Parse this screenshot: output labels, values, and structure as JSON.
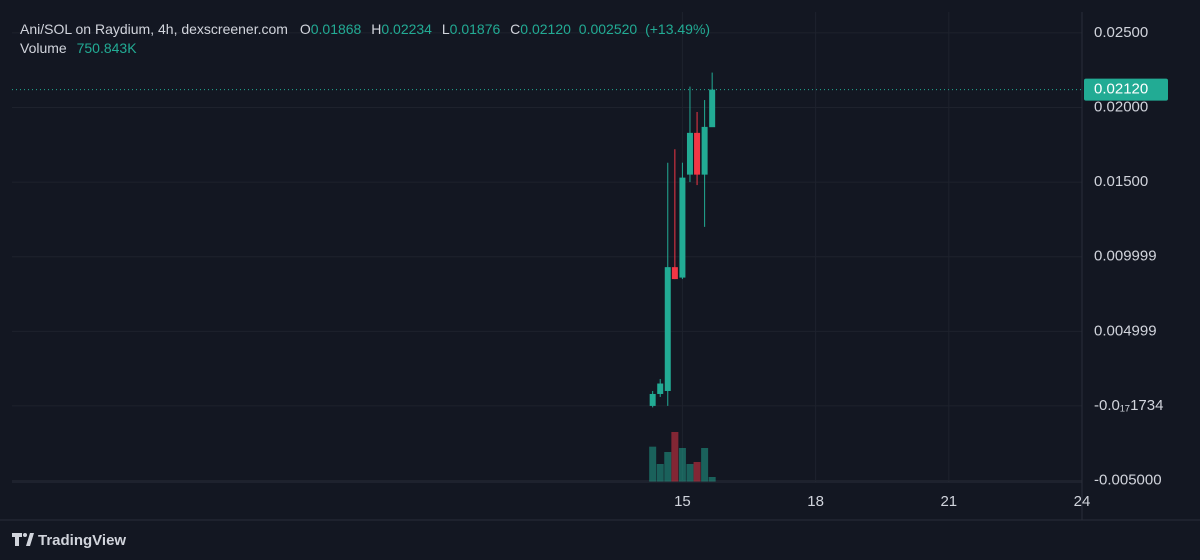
{
  "chart_data": {
    "type": "candlestick",
    "title": "Ani/SOL on Raydium, 4h, dexscreener.com",
    "legend": [
      {
        "key": "O",
        "value": "0.01868"
      },
      {
        "key": "H",
        "value": "0.02234"
      },
      {
        "key": "L",
        "value": "0.01876"
      },
      {
        "key": "C",
        "value": "0.02120"
      }
    ],
    "change": "0.002520",
    "change_pct": "(+13.49%)",
    "volume_title": "Volume",
    "volume_label": "750.843K",
    "last_price_label": "0.02120",
    "x": [
      14.33,
      14.5,
      14.67,
      14.83,
      15.0,
      15.17,
      15.33,
      15.5,
      15.67
    ],
    "open": [
      0.0,
      0.0008,
      0.001,
      0.0093,
      0.0086,
      0.0155,
      0.0183,
      0.0155,
      0.01868
    ],
    "high": [
      0.001,
      0.0018,
      0.0163,
      0.0172,
      0.0163,
      0.0214,
      0.0197,
      0.0205,
      0.02234
    ],
    "low": [
      -0.0001,
      0.0006,
      0.0,
      0.0085,
      0.0085,
      0.015,
      0.0148,
      0.012,
      0.01876
    ],
    "close": [
      0.0008,
      0.0015,
      0.0093,
      0.0085,
      0.0153,
      0.0183,
      0.0155,
      0.0187,
      0.0212
    ],
    "volume": [
      5300000,
      2700000,
      4500000,
      7500000,
      5100000,
      2700000,
      3000000,
      5100000,
      750843
    ],
    "up_color": "#22ab94",
    "down_color": "#f23645",
    "xlim": [
      -0.1,
      24.0
    ],
    "xticks": [
      15,
      18,
      21,
      24
    ],
    "ylim": [
      -0.0051,
      0.0264
    ],
    "yticks": [
      {
        "value": -0.005,
        "label": "-0.005000"
      },
      {
        "value": -1.734e-18,
        "label": "-0.0₁₇1734"
      },
      0.004999,
      0.009999,
      {
        "value": 0.015,
        "label": "0.01500"
      },
      {
        "value": 0.02,
        "label": "0.02000"
      },
      {
        "value": 0.025,
        "label": "0.02500"
      }
    ],
    "grid": true,
    "footer": "TradingView"
  }
}
